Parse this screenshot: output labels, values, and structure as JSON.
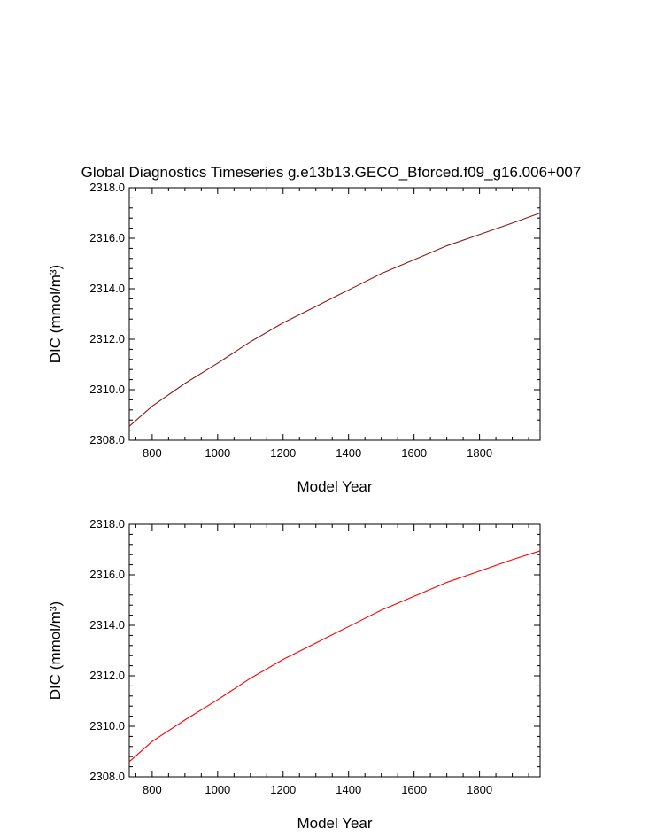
{
  "title": "Global Diagnostics Timeseries g.e13b13.GECO_Bforced.f09_g16.006+007",
  "colors": {
    "dark_line": "#8b1a1a",
    "red_line": "#ff0000",
    "axis": "#000000",
    "background": "#ffffff"
  },
  "chart_data": [
    {
      "type": "line",
      "title": "Global Diagnostics Timeseries g.e13b13.GECO_Bforced.f09_g16.006+007",
      "xlabel": "Model Year",
      "ylabel": "DIC (mmol/m³)",
      "xlim": [
        730,
        1985
      ],
      "ylim": [
        2308.0,
        2318.0
      ],
      "xticks": [
        800,
        1000,
        1200,
        1400,
        1600,
        1800
      ],
      "yticks": [
        "2308.0",
        "2310.0",
        "2312.0",
        "2314.0",
        "2316.0",
        "2318.0"
      ],
      "grid": false,
      "series": [
        {
          "color": "#8b1a1a",
          "x": [
            730,
            800,
            900,
            1000,
            1100,
            1200,
            1300,
            1400,
            1500,
            1600,
            1700,
            1800,
            1900,
            1985
          ],
          "y": [
            2308.55,
            2309.35,
            2310.25,
            2311.05,
            2311.9,
            2312.65,
            2313.3,
            2313.95,
            2314.6,
            2315.15,
            2315.7,
            2316.15,
            2316.6,
            2317.0
          ]
        }
      ]
    },
    {
      "type": "line",
      "xlabel": "Model Year",
      "ylabel": "DIC (mmol/m³)",
      "xlim": [
        730,
        1985
      ],
      "ylim": [
        2308.0,
        2318.0
      ],
      "xticks": [
        800,
        1000,
        1200,
        1400,
        1600,
        1800
      ],
      "yticks": [
        "2308.0",
        "2310.0",
        "2312.0",
        "2314.0",
        "2316.0",
        "2318.0"
      ],
      "grid": false,
      "series": [
        {
          "color": "#ff0000",
          "x": [
            730,
            800,
            900,
            1000,
            1100,
            1200,
            1300,
            1400,
            1500,
            1600,
            1700,
            1800,
            1900,
            1985
          ],
          "y": [
            2308.6,
            2309.4,
            2310.25,
            2311.05,
            2311.9,
            2312.65,
            2313.3,
            2313.95,
            2314.6,
            2315.15,
            2315.7,
            2316.15,
            2316.6,
            2316.95
          ]
        }
      ]
    }
  ]
}
